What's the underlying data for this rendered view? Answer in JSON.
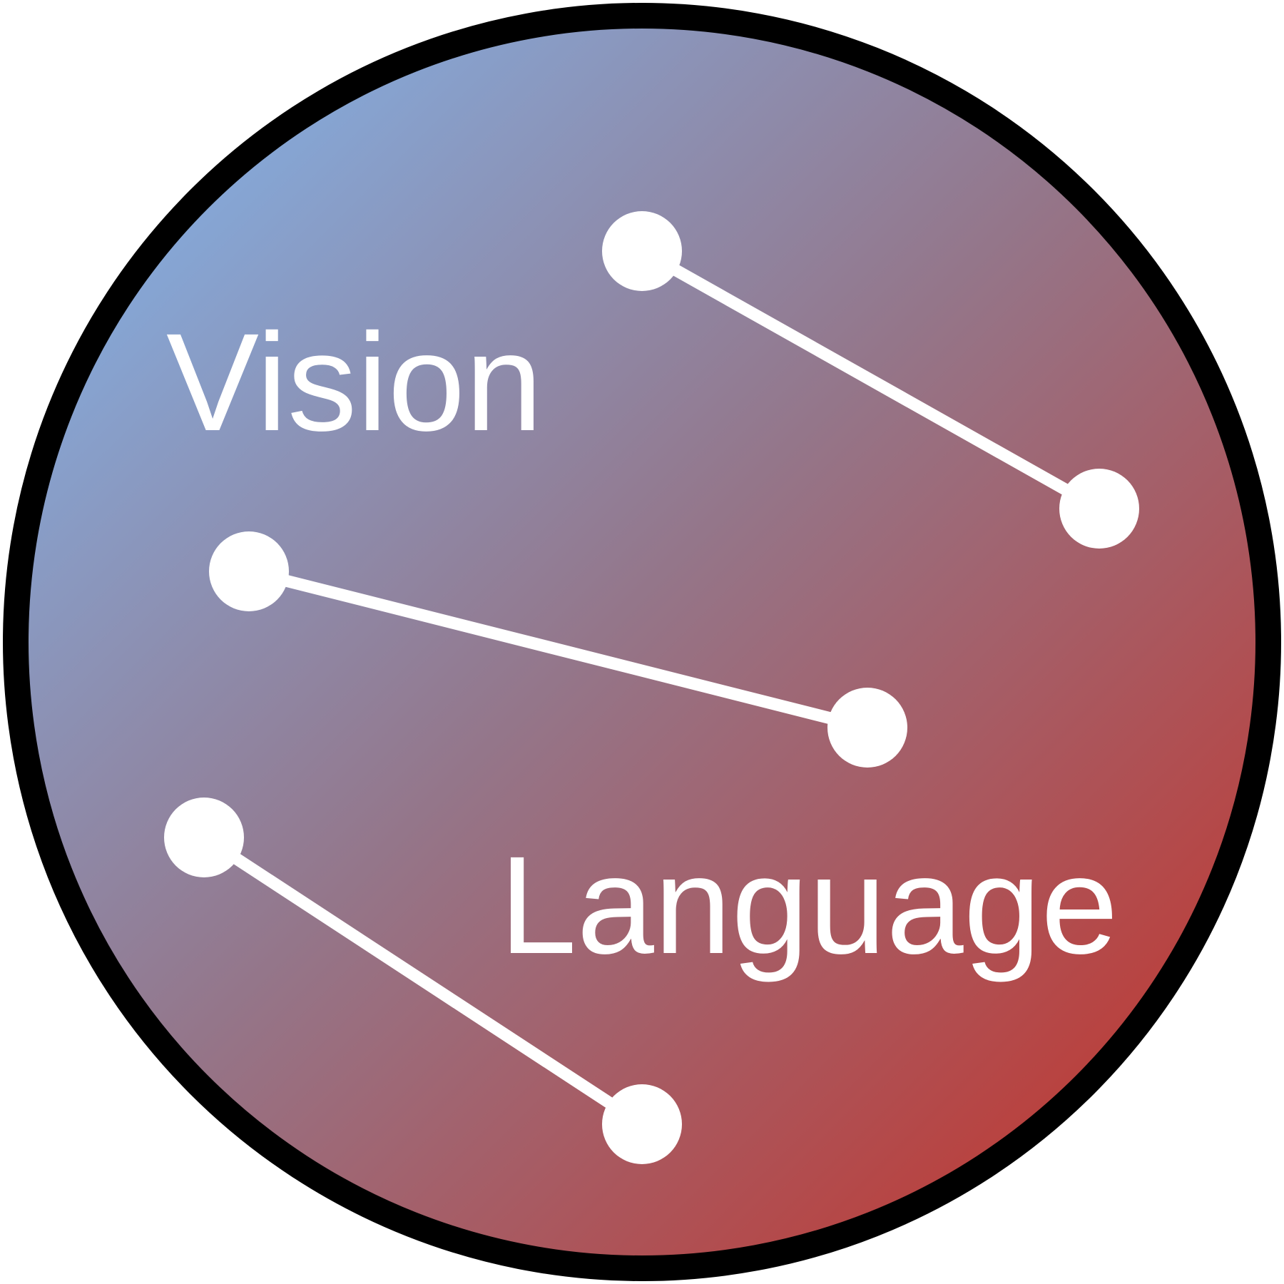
{
  "logo": {
    "words": {
      "vision": "Vision",
      "language": "Language"
    },
    "colors": {
      "gradient_start": "#7fbcf7",
      "gradient_mid": "#94768a",
      "gradient_end": "#c82d21",
      "ring": "#000000",
      "nodes_and_links": "#ffffff"
    },
    "connections": [
      {
        "from": "node-1",
        "to": "node-2"
      },
      {
        "from": "node-3",
        "to": "node-4"
      },
      {
        "from": "node-5",
        "to": "node-6"
      }
    ]
  }
}
